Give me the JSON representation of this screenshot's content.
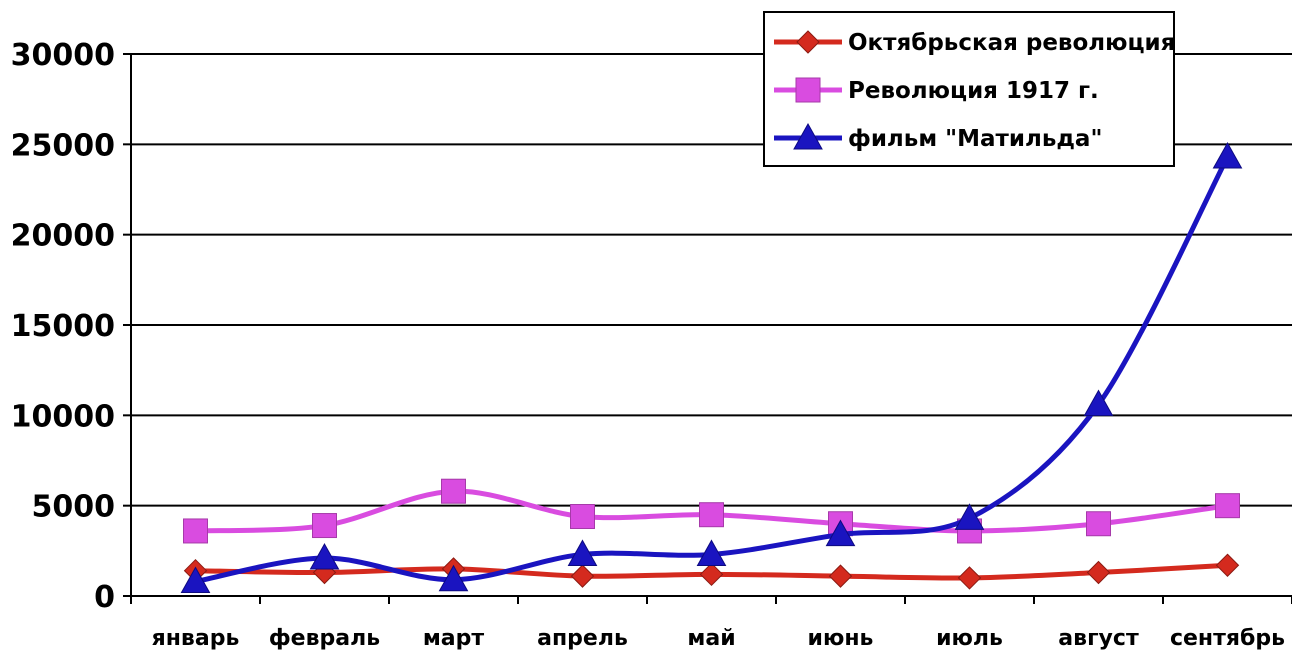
{
  "chart_data": {
    "type": "line",
    "title": "",
    "xlabel": "",
    "ylabel": "",
    "categories": [
      "январь",
      "февраль",
      "март",
      "апрель",
      "май",
      "июнь",
      "июль",
      "август",
      "сентябрь"
    ],
    "ylim": [
      0,
      30000
    ],
    "yticks": [
      0,
      5000,
      10000,
      15000,
      20000,
      25000,
      30000
    ],
    "grid": "horizontal",
    "legend_position": "top-right",
    "series": [
      {
        "name": "Октябрьская революция",
        "color": "#d42a1e",
        "marker": "diamond",
        "values": [
          1400,
          1300,
          1500,
          1100,
          1200,
          1100,
          1000,
          1300,
          1700
        ]
      },
      {
        "name": "Революция 1917 г.",
        "color": "#d94ce0",
        "marker": "square",
        "values": [
          3600,
          3900,
          5800,
          4400,
          4500,
          4000,
          3600,
          4000,
          5000
        ]
      },
      {
        "name": "фильм \"Матильда\"",
        "color": "#1a14c0",
        "marker": "triangle",
        "values": [
          800,
          2100,
          900,
          2300,
          2300,
          3400,
          4300,
          10600,
          24300
        ]
      }
    ]
  }
}
